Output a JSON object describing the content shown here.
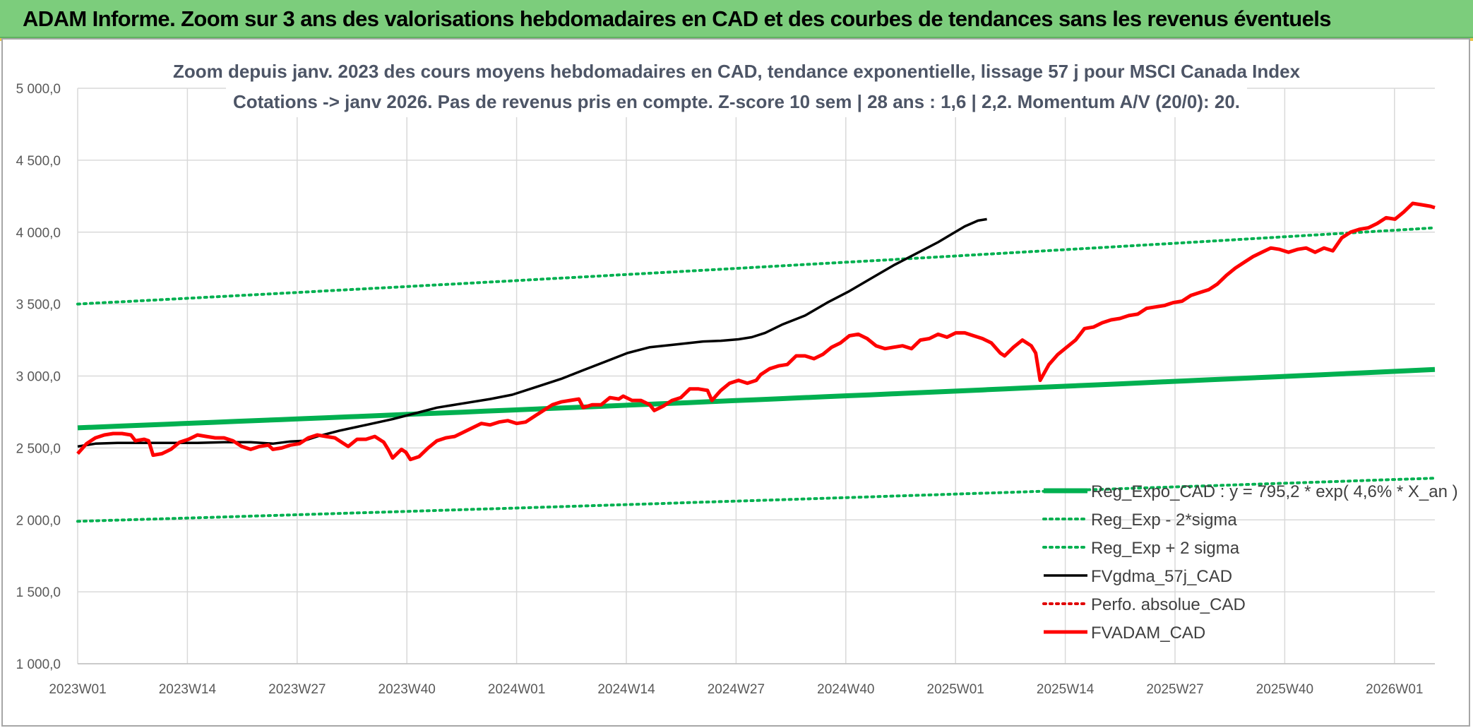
{
  "banner": {
    "title": "ADAM Informe. Zoom sur 3 ans des valorisations hebdomadaires en CAD et des courbes de tendances sans les revenus éventuels"
  },
  "chart_data": {
    "type": "line",
    "title": "Zoom depuis janv. 2023 des cours moyens hebdomadaires en CAD, tendance exponentielle, lissage 57 j pour MSCI Canada Index",
    "subtitle": "Cotations -> janv 2026. Pas de revenus pris en compte. Z-score 10 sem | 28 ans : 1,6 | 2,2. Momentum A/V (20/0): 20.",
    "xlabel": "",
    "ylabel": "",
    "ylim": [
      1000,
      5000
    ],
    "yticks": [
      1000,
      1500,
      2000,
      2500,
      3000,
      3500,
      4000,
      4500,
      5000
    ],
    "ytick_labels": [
      "1 000,0",
      "1 500,0",
      "2 000,0",
      "2 500,0",
      "3 000,0",
      "3 500,0",
      "4 000,0",
      "4 500,0",
      "5 000,0"
    ],
    "x_tick_labels": [
      "2023W01",
      "2023W14",
      "2023W27",
      "2023W40",
      "2024W01",
      "2024W14",
      "2024W27",
      "2024W40",
      "2025W01",
      "2025W14",
      "2025W27",
      "2025W40",
      "2026W01"
    ],
    "x_range_weeks": [
      1,
      162
    ],
    "grid": true,
    "legend_position": "bottom-right",
    "series": [
      {
        "name": "Reg_Expo_CAD : y = 795,2 * exp( 4,6% *  X_an )",
        "color": "#00b050",
        "style": "solid-thick",
        "points": [
          [
            1,
            2640
          ],
          [
            162,
            3045
          ]
        ]
      },
      {
        "name": "Reg_Exp - 2*sigma",
        "color": "#00b050",
        "style": "dotted",
        "points": [
          [
            1,
            1990
          ],
          [
            162,
            2290
          ]
        ]
      },
      {
        "name": "Reg_Exp + 2 sigma",
        "color": "#00b050",
        "style": "dotted",
        "points": [
          [
            1,
            3500
          ],
          [
            162,
            4030
          ]
        ]
      },
      {
        "name": "FVgdma_57j_CAD",
        "color": "#000000",
        "style": "solid",
        "points": [
          [
            1,
            2510
          ],
          [
            5,
            2530
          ],
          [
            10,
            2535
          ],
          [
            16,
            2535
          ],
          [
            22,
            2535
          ],
          [
            28,
            2535
          ],
          [
            34,
            2540
          ],
          [
            40,
            2540
          ],
          [
            45,
            2530
          ],
          [
            49,
            2545
          ],
          [
            52,
            2550
          ],
          [
            55,
            2580
          ],
          [
            60,
            2620
          ],
          [
            66,
            2660
          ],
          [
            72,
            2700
          ],
          [
            77,
            2740
          ],
          [
            82,
            2780
          ],
          [
            88,
            2810
          ],
          [
            94,
            2840
          ],
          [
            99,
            2870
          ],
          [
            105,
            2930
          ],
          [
            110,
            2980
          ],
          [
            115,
            3040
          ],
          [
            120,
            3100
          ],
          [
            125,
            3160
          ],
          [
            130,
            3200
          ],
          [
            136,
            3220
          ],
          [
            142,
            3240
          ],
          [
            146,
            3245
          ],
          [
            150,
            3255
          ],
          [
            153,
            3270
          ],
          [
            156,
            3300
          ],
          [
            160,
            3360
          ],
          [
            165,
            3420
          ],
          [
            170,
            3510
          ],
          [
            175,
            3590
          ],
          [
            180,
            3680
          ],
          [
            185,
            3770
          ],
          [
            190,
            3850
          ],
          [
            195,
            3930
          ],
          [
            198,
            3985
          ],
          [
            201,
            4040
          ],
          [
            204,
            4080
          ],
          [
            206,
            4090
          ]
        ]
      },
      {
        "name": "Perfo. absolue_CAD",
        "color": "#e00000",
        "style": "dotted",
        "points": []
      },
      {
        "name": "FVADAM_CAD",
        "color": "#ff0000",
        "style": "solid-thick",
        "points": [
          [
            1,
            2460
          ],
          [
            3,
            2530
          ],
          [
            5,
            2570
          ],
          [
            7,
            2590
          ],
          [
            9,
            2600
          ],
          [
            11,
            2600
          ],
          [
            13,
            2590
          ],
          [
            14,
            2550
          ],
          [
            16,
            2560
          ],
          [
            17,
            2550
          ],
          [
            18,
            2450
          ],
          [
            20,
            2460
          ],
          [
            22,
            2490
          ],
          [
            24,
            2540
          ],
          [
            26,
            2560
          ],
          [
            28,
            2590
          ],
          [
            30,
            2580
          ],
          [
            32,
            2570
          ],
          [
            34,
            2570
          ],
          [
            36,
            2550
          ],
          [
            38,
            2510
          ],
          [
            40,
            2490
          ],
          [
            42,
            2510
          ],
          [
            44,
            2520
          ],
          [
            45,
            2490
          ],
          [
            47,
            2500
          ],
          [
            49,
            2520
          ],
          [
            51,
            2530
          ],
          [
            53,
            2570
          ],
          [
            55,
            2590
          ],
          [
            57,
            2580
          ],
          [
            59,
            2570
          ],
          [
            61,
            2530
          ],
          [
            62,
            2510
          ],
          [
            64,
            2560
          ],
          [
            66,
            2560
          ],
          [
            68,
            2580
          ],
          [
            70,
            2540
          ],
          [
            71,
            2490
          ],
          [
            72,
            2430
          ],
          [
            74,
            2490
          ],
          [
            75,
            2470
          ],
          [
            76,
            2420
          ],
          [
            78,
            2440
          ],
          [
            80,
            2500
          ],
          [
            82,
            2550
          ],
          [
            84,
            2570
          ],
          [
            86,
            2580
          ],
          [
            88,
            2610
          ],
          [
            90,
            2640
          ],
          [
            92,
            2670
          ],
          [
            94,
            2660
          ],
          [
            96,
            2680
          ],
          [
            98,
            2690
          ],
          [
            100,
            2670
          ],
          [
            102,
            2680
          ],
          [
            104,
            2720
          ],
          [
            106,
            2760
          ],
          [
            108,
            2800
          ],
          [
            110,
            2820
          ],
          [
            112,
            2830
          ],
          [
            114,
            2840
          ],
          [
            115,
            2780
          ],
          [
            117,
            2800
          ],
          [
            119,
            2800
          ],
          [
            121,
            2850
          ],
          [
            123,
            2840
          ],
          [
            124,
            2860
          ],
          [
            126,
            2830
          ],
          [
            128,
            2830
          ],
          [
            130,
            2800
          ],
          [
            131,
            2760
          ],
          [
            133,
            2790
          ],
          [
            135,
            2830
          ],
          [
            137,
            2850
          ],
          [
            139,
            2910
          ],
          [
            141,
            2910
          ],
          [
            143,
            2900
          ],
          [
            144,
            2830
          ],
          [
            146,
            2900
          ],
          [
            148,
            2950
          ],
          [
            150,
            2970
          ],
          [
            152,
            2950
          ],
          [
            154,
            2970
          ],
          [
            155,
            3010
          ],
          [
            157,
            3050
          ],
          [
            159,
            3070
          ],
          [
            161,
            3080
          ],
          [
            163,
            3140
          ],
          [
            165,
            3140
          ],
          [
            167,
            3120
          ],
          [
            169,
            3150
          ],
          [
            171,
            3200
          ],
          [
            173,
            3230
          ],
          [
            175,
            3280
          ],
          [
            177,
            3290
          ],
          [
            179,
            3260
          ],
          [
            181,
            3210
          ],
          [
            183,
            3190
          ],
          [
            185,
            3200
          ],
          [
            187,
            3210
          ],
          [
            189,
            3190
          ],
          [
            191,
            3250
          ],
          [
            193,
            3260
          ],
          [
            195,
            3290
          ],
          [
            197,
            3270
          ],
          [
            199,
            3300
          ],
          [
            201,
            3300
          ],
          [
            203,
            3280
          ],
          [
            205,
            3260
          ],
          [
            207,
            3230
          ],
          [
            209,
            3160
          ],
          [
            210,
            3140
          ],
          [
            212,
            3200
          ],
          [
            214,
            3250
          ],
          [
            216,
            3210
          ],
          [
            217,
            3160
          ],
          [
            218,
            2970
          ],
          [
            220,
            3080
          ],
          [
            222,
            3150
          ],
          [
            224,
            3200
          ],
          [
            226,
            3250
          ],
          [
            228,
            3330
          ],
          [
            230,
            3340
          ],
          [
            232,
            3370
          ],
          [
            234,
            3390
          ],
          [
            236,
            3400
          ],
          [
            238,
            3420
          ],
          [
            240,
            3430
          ],
          [
            242,
            3470
          ],
          [
            244,
            3480
          ],
          [
            246,
            3490
          ],
          [
            248,
            3510
          ],
          [
            250,
            3520
          ],
          [
            252,
            3560
          ],
          [
            254,
            3580
          ],
          [
            256,
            3600
          ],
          [
            258,
            3640
          ],
          [
            260,
            3700
          ],
          [
            262,
            3750
          ],
          [
            264,
            3790
          ],
          [
            266,
            3830
          ],
          [
            268,
            3860
          ],
          [
            270,
            3890
          ],
          [
            272,
            3880
          ],
          [
            274,
            3860
          ],
          [
            276,
            3880
          ],
          [
            278,
            3890
          ],
          [
            280,
            3860
          ],
          [
            282,
            3890
          ],
          [
            284,
            3870
          ],
          [
            286,
            3960
          ],
          [
            288,
            4000
          ],
          [
            290,
            4020
          ],
          [
            292,
            4030
          ],
          [
            294,
            4060
          ],
          [
            296,
            4100
          ],
          [
            298,
            4090
          ],
          [
            300,
            4140
          ],
          [
            302,
            4200
          ],
          [
            304,
            4190
          ],
          [
            306,
            4180
          ],
          [
            307,
            4170
          ]
        ]
      }
    ]
  }
}
